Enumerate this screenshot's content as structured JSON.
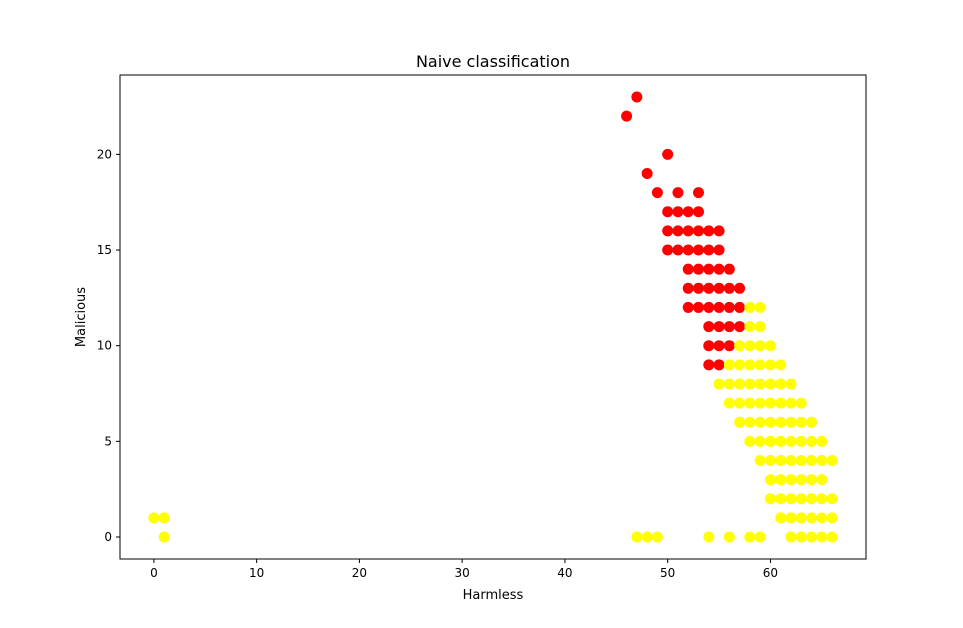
{
  "chart_data": {
    "type": "scatter",
    "title": "Naive classification",
    "xlabel": "Harmless",
    "ylabel": "Malicious",
    "xlim": [
      -3.3,
      69.3
    ],
    "ylim": [
      -1.15,
      24.15
    ],
    "xticks": [
      0,
      10,
      20,
      30,
      40,
      50,
      60
    ],
    "yticks": [
      0,
      5,
      10,
      15,
      20
    ],
    "grid": false,
    "legend": false,
    "colors": {
      "red": "#ff0000",
      "yellow": "#ffff00"
    },
    "series": [
      {
        "color": "red",
        "points": [
          [
            46,
            22
          ],
          [
            47,
            23
          ],
          [
            48,
            19
          ],
          [
            49,
            18
          ],
          [
            50,
            20
          ],
          [
            51,
            18
          ],
          [
            53,
            18
          ],
          [
            50,
            17
          ],
          [
            51,
            17
          ],
          [
            52,
            17
          ],
          [
            53,
            17
          ],
          [
            50,
            16
          ],
          [
            51,
            16
          ],
          [
            52,
            16
          ],
          [
            53,
            16
          ],
          [
            54,
            16
          ],
          [
            55,
            16
          ],
          [
            50,
            15
          ],
          [
            51,
            15
          ],
          [
            52,
            15
          ],
          [
            53,
            15
          ],
          [
            54,
            15
          ],
          [
            55,
            15
          ],
          [
            52,
            14
          ],
          [
            53,
            14
          ],
          [
            54,
            14
          ],
          [
            55,
            14
          ],
          [
            56,
            14
          ],
          [
            52,
            13
          ],
          [
            53,
            13
          ],
          [
            54,
            13
          ],
          [
            55,
            13
          ],
          [
            56,
            13
          ],
          [
            57,
            13
          ],
          [
            52,
            12
          ],
          [
            53,
            12
          ],
          [
            54,
            12
          ],
          [
            55,
            12
          ],
          [
            56,
            12
          ],
          [
            57,
            12
          ],
          [
            54,
            11
          ],
          [
            55,
            11
          ],
          [
            56,
            11
          ],
          [
            57,
            11
          ],
          [
            54,
            10
          ],
          [
            55,
            10
          ],
          [
            56,
            10
          ],
          [
            54,
            9
          ],
          [
            55,
            9
          ]
        ]
      },
      {
        "color": "yellow",
        "points": [
          [
            0,
            1
          ],
          [
            1,
            1
          ],
          [
            1,
            0
          ],
          [
            47,
            0
          ],
          [
            48,
            0
          ],
          [
            49,
            0
          ],
          [
            54,
            0
          ],
          [
            56,
            0
          ],
          [
            58,
            0
          ],
          [
            59,
            0
          ],
          [
            62,
            0
          ],
          [
            63,
            0
          ],
          [
            64,
            0
          ],
          [
            65,
            0
          ],
          [
            66,
            0
          ],
          [
            61,
            1
          ],
          [
            62,
            1
          ],
          [
            63,
            1
          ],
          [
            64,
            1
          ],
          [
            65,
            1
          ],
          [
            66,
            1
          ],
          [
            60,
            2
          ],
          [
            61,
            2
          ],
          [
            62,
            2
          ],
          [
            63,
            2
          ],
          [
            64,
            2
          ],
          [
            65,
            2
          ],
          [
            66,
            2
          ],
          [
            60,
            3
          ],
          [
            61,
            3
          ],
          [
            62,
            3
          ],
          [
            63,
            3
          ],
          [
            64,
            3
          ],
          [
            65,
            3
          ],
          [
            59,
            4
          ],
          [
            60,
            4
          ],
          [
            61,
            4
          ],
          [
            62,
            4
          ],
          [
            63,
            4
          ],
          [
            64,
            4
          ],
          [
            65,
            4
          ],
          [
            66,
            4
          ],
          [
            58,
            5
          ],
          [
            59,
            5
          ],
          [
            60,
            5
          ],
          [
            61,
            5
          ],
          [
            62,
            5
          ],
          [
            63,
            5
          ],
          [
            64,
            5
          ],
          [
            65,
            5
          ],
          [
            57,
            6
          ],
          [
            58,
            6
          ],
          [
            59,
            6
          ],
          [
            60,
            6
          ],
          [
            61,
            6
          ],
          [
            62,
            6
          ],
          [
            63,
            6
          ],
          [
            64,
            6
          ],
          [
            56,
            7
          ],
          [
            57,
            7
          ],
          [
            58,
            7
          ],
          [
            59,
            7
          ],
          [
            60,
            7
          ],
          [
            61,
            7
          ],
          [
            62,
            7
          ],
          [
            63,
            7
          ],
          [
            55,
            8
          ],
          [
            56,
            8
          ],
          [
            57,
            8
          ],
          [
            58,
            8
          ],
          [
            59,
            8
          ],
          [
            60,
            8
          ],
          [
            61,
            8
          ],
          [
            62,
            8
          ],
          [
            56,
            9
          ],
          [
            57,
            9
          ],
          [
            58,
            9
          ],
          [
            59,
            9
          ],
          [
            60,
            9
          ],
          [
            61,
            9
          ],
          [
            57,
            10
          ],
          [
            58,
            10
          ],
          [
            59,
            10
          ],
          [
            60,
            10
          ],
          [
            58,
            11
          ],
          [
            59,
            11
          ],
          [
            58,
            12
          ],
          [
            59,
            12
          ]
        ]
      }
    ]
  }
}
